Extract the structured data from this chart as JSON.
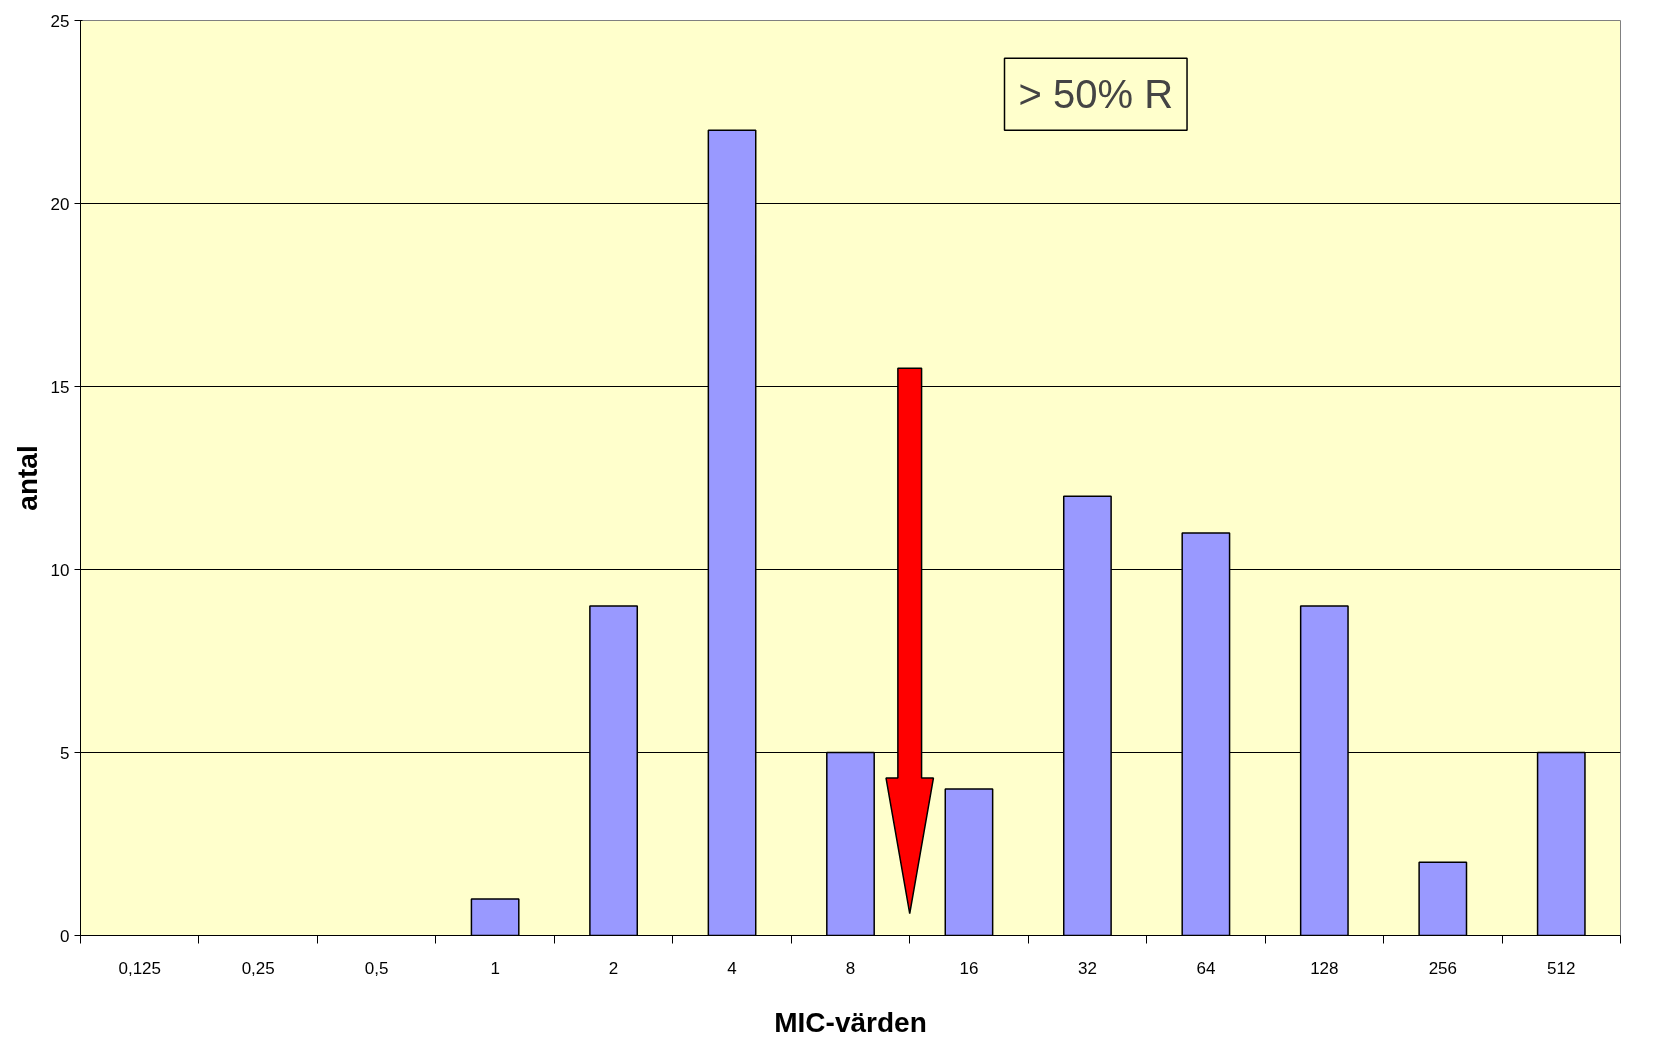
{
  "chart_data": {
    "type": "bar",
    "xlabel": "MIC-värden",
    "ylabel": "antal",
    "categories": [
      "0,125",
      "0,25",
      "0,5",
      "1",
      "2",
      "4",
      "8",
      "16",
      "32",
      "64",
      "128",
      "256",
      "512"
    ],
    "values": [
      0,
      0,
      0,
      1,
      9,
      22,
      5,
      4,
      12,
      11,
      9,
      2,
      5
    ],
    "color": "#9999ff",
    "ylim": [
      0,
      25
    ],
    "yticks": [
      0,
      5,
      10,
      15,
      20,
      25
    ],
    "grid": "y",
    "annotations": [
      "> 50% R"
    ]
  }
}
